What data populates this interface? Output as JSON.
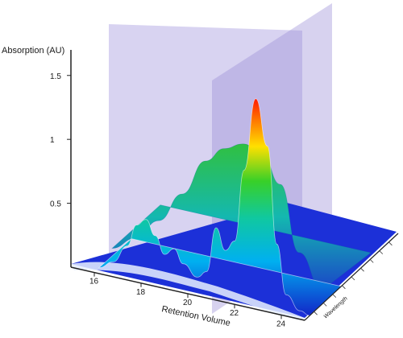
{
  "chart_data": {
    "type": "area",
    "subtype": "3d-surface",
    "title": "",
    "ylabel": "Absorption (AU)",
    "xlabel": "Retention Volume",
    "zlabel": "Wavelength",
    "yticks": [
      0.5,
      1,
      1.5
    ],
    "ytick_labels": [
      "0.5",
      "1",
      "1.5"
    ],
    "xticks": [
      16,
      18,
      20,
      22,
      24
    ],
    "ylim": [
      0,
      1.7
    ],
    "xlim": [
      15,
      25
    ],
    "colormap": [
      "#1226c8",
      "#00b0f0",
      "#10c8a0",
      "#38d028",
      "#ffe000",
      "#ff7800",
      "#ff1800"
    ],
    "plane_color": "#9a8fd6",
    "series": [
      {
        "values": [
          [
            16.0,
            0.0
          ],
          [
            16.6,
            0.07
          ],
          [
            17.2,
            0.22
          ],
          [
            17.6,
            0.4
          ],
          [
            18.0,
            0.46
          ],
          [
            18.4,
            0.35
          ],
          [
            18.8,
            0.22
          ],
          [
            19.2,
            0.28
          ],
          [
            19.6,
            0.18
          ],
          [
            20.2,
            0.1
          ],
          [
            20.6,
            0.16
          ],
          [
            21.0,
            0.52
          ],
          [
            21.4,
            0.36
          ],
          [
            21.8,
            0.45
          ],
          [
            22.2,
            1.02
          ],
          [
            22.7,
            1.6
          ],
          [
            23.2,
            1.25
          ],
          [
            23.6,
            0.5
          ],
          [
            24.0,
            0.12
          ],
          [
            24.6,
            0.02
          ],
          [
            25.0,
            0.0
          ]
        ]
      },
      {
        "values": [
          [
            16.0,
            0.0
          ],
          [
            17.0,
            0.12
          ],
          [
            18.0,
            0.3
          ],
          [
            19.0,
            0.55
          ],
          [
            20.0,
            0.85
          ],
          [
            20.8,
            0.98
          ],
          [
            21.6,
            1.05
          ],
          [
            22.4,
            1.02
          ],
          [
            23.2,
            0.8
          ],
          [
            24.0,
            0.3
          ],
          [
            25.0,
            0.05
          ]
        ]
      }
    ]
  }
}
